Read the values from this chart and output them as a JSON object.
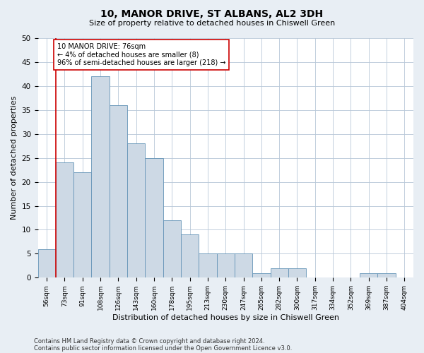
{
  "title": "10, MANOR DRIVE, ST ALBANS, AL2 3DH",
  "subtitle": "Size of property relative to detached houses in Chiswell Green",
  "xlabel": "Distribution of detached houses by size in Chiswell Green",
  "ylabel": "Number of detached properties",
  "categories": [
    "56sqm",
    "73sqm",
    "91sqm",
    "108sqm",
    "126sqm",
    "143sqm",
    "160sqm",
    "178sqm",
    "195sqm",
    "213sqm",
    "230sqm",
    "247sqm",
    "265sqm",
    "282sqm",
    "300sqm",
    "317sqm",
    "334sqm",
    "352sqm",
    "369sqm",
    "387sqm",
    "404sqm"
  ],
  "values": [
    6,
    24,
    22,
    42,
    36,
    28,
    25,
    12,
    9,
    5,
    5,
    5,
    1,
    2,
    2,
    0,
    0,
    0,
    1,
    1,
    0
  ],
  "bar_color": "#cdd9e5",
  "bar_edge_color": "#6494b7",
  "vline_x": 0.5,
  "vline_color": "#cc0000",
  "annotation_text": "10 MANOR DRIVE: 76sqm\n← 4% of detached houses are smaller (8)\n96% of semi-detached houses are larger (218) →",
  "annotation_box_color": "#ffffff",
  "annotation_box_edge": "#cc0000",
  "ylim": [
    0,
    50
  ],
  "yticks": [
    0,
    5,
    10,
    15,
    20,
    25,
    30,
    35,
    40,
    45,
    50
  ],
  "footer1": "Contains HM Land Registry data © Crown copyright and database right 2024.",
  "footer2": "Contains public sector information licensed under the Open Government Licence v3.0.",
  "bg_color": "#e8eef4",
  "plot_bg_color": "#ffffff",
  "grid_color": "#b8c8d8",
  "title_fontsize": 10,
  "subtitle_fontsize": 8,
  "ylabel_fontsize": 8,
  "xlabel_fontsize": 8
}
